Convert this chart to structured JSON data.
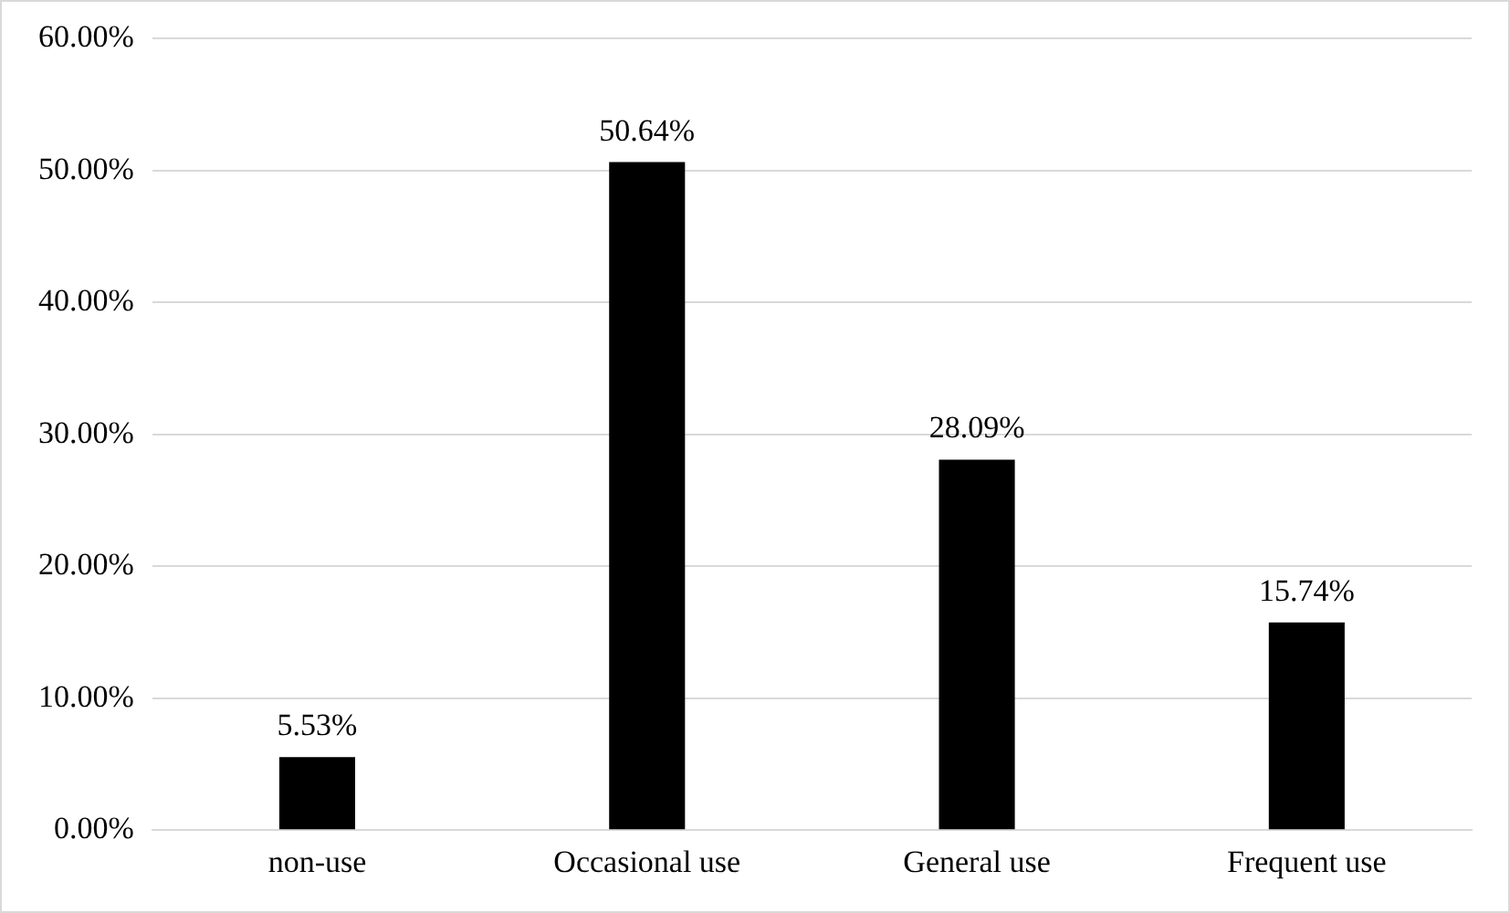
{
  "chart_data": {
    "type": "bar",
    "categories": [
      "non-use",
      "Occasional use",
      "General use",
      "Frequent use"
    ],
    "values": [
      5.53,
      50.64,
      28.09,
      15.74
    ],
    "value_labels": [
      "5.53%",
      "50.64%",
      "28.09%",
      "15.74%"
    ],
    "color": "#000000",
    "ylim": [
      0,
      60
    ],
    "yticks": [
      {
        "value": 0,
        "label": "0.00%"
      },
      {
        "value": 10,
        "label": "10.00%"
      },
      {
        "value": 20,
        "label": "20.00%"
      },
      {
        "value": 30,
        "label": "30.00%"
      },
      {
        "value": 40,
        "label": "40.00%"
      },
      {
        "value": 50,
        "label": "50.00%"
      },
      {
        "value": 60,
        "label": "60.00%"
      }
    ],
    "grid": "y"
  }
}
